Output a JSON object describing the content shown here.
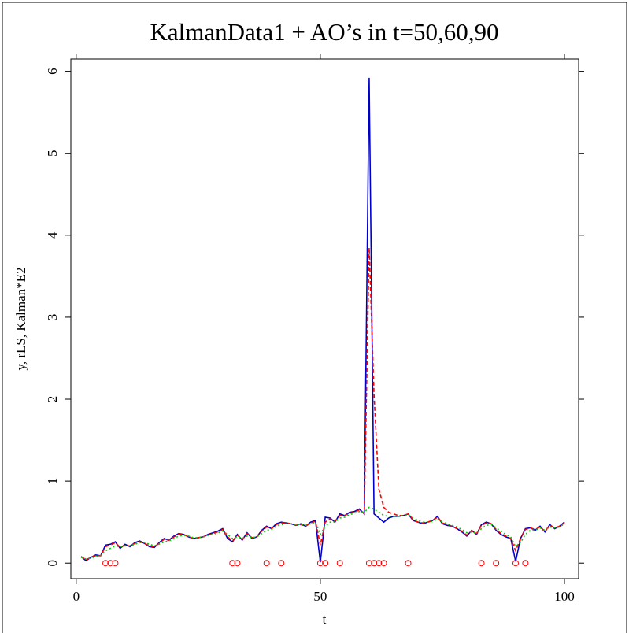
{
  "chart_data": {
    "type": "line",
    "title": "KalmanData1 + AO’s in t=50,60,90",
    "x_label": "t",
    "y_label": "y, rLS, Kalman*E2",
    "xlim": [
      -1.1,
      102.9
    ],
    "xticks": [
      0,
      50,
      100
    ],
    "ylim": [
      -0.19,
      6.15
    ],
    "yticks": [
      0,
      1,
      2,
      3,
      4,
      5,
      6
    ],
    "x": [
      1,
      2,
      3,
      4,
      5,
      6,
      7,
      8,
      9,
      10,
      11,
      12,
      13,
      14,
      15,
      16,
      17,
      18,
      19,
      20,
      21,
      22,
      23,
      24,
      25,
      26,
      27,
      28,
      29,
      30,
      31,
      32,
      33,
      34,
      35,
      36,
      37,
      38,
      39,
      40,
      41,
      42,
      43,
      44,
      45,
      46,
      47,
      48,
      49,
      50,
      51,
      52,
      53,
      54,
      55,
      56,
      57,
      58,
      59,
      60,
      61,
      62,
      63,
      64,
      65,
      66,
      67,
      68,
      69,
      70,
      71,
      72,
      73,
      74,
      75,
      76,
      77,
      78,
      79,
      80,
      81,
      82,
      83,
      84,
      85,
      86,
      87,
      88,
      89,
      90,
      91,
      92,
      93,
      94,
      95,
      96,
      97,
      98,
      99,
      100
    ],
    "series": [
      {
        "color": "#0000cc",
        "style": "solid",
        "values": [
          0.08,
          0.03,
          0.07,
          0.1,
          0.09,
          0.22,
          0.23,
          0.26,
          0.18,
          0.23,
          0.2,
          0.25,
          0.27,
          0.24,
          0.2,
          0.19,
          0.25,
          0.3,
          0.28,
          0.33,
          0.36,
          0.35,
          0.32,
          0.3,
          0.31,
          0.32,
          0.35,
          0.37,
          0.39,
          0.42,
          0.3,
          0.26,
          0.35,
          0.28,
          0.37,
          0.3,
          0.32,
          0.4,
          0.45,
          0.42,
          0.48,
          0.5,
          0.49,
          0.48,
          0.46,
          0.48,
          0.45,
          0.5,
          0.52,
          0.01,
          0.56,
          0.55,
          0.5,
          0.6,
          0.58,
          0.62,
          0.63,
          0.66,
          0.6,
          5.92,
          0.6,
          0.55,
          0.5,
          0.55,
          0.57,
          0.57,
          0.58,
          0.6,
          0.52,
          0.5,
          0.48,
          0.5,
          0.52,
          0.57,
          0.48,
          0.46,
          0.45,
          0.42,
          0.38,
          0.33,
          0.4,
          0.35,
          0.47,
          0.5,
          0.48,
          0.4,
          0.35,
          0.32,
          0.3,
          0.02,
          0.3,
          0.42,
          0.43,
          0.4,
          0.45,
          0.38,
          0.47,
          0.42,
          0.45,
          0.5
        ]
      },
      {
        "color": "#ff0000",
        "style": "dashed",
        "values": [
          0.08,
          0.04,
          0.07,
          0.09,
          0.09,
          0.2,
          0.22,
          0.25,
          0.19,
          0.22,
          0.21,
          0.24,
          0.26,
          0.24,
          0.21,
          0.2,
          0.24,
          0.29,
          0.28,
          0.32,
          0.35,
          0.35,
          0.32,
          0.3,
          0.31,
          0.32,
          0.34,
          0.36,
          0.38,
          0.41,
          0.32,
          0.27,
          0.34,
          0.29,
          0.36,
          0.31,
          0.32,
          0.39,
          0.44,
          0.42,
          0.47,
          0.49,
          0.49,
          0.48,
          0.46,
          0.47,
          0.45,
          0.49,
          0.51,
          0.22,
          0.5,
          0.54,
          0.51,
          0.58,
          0.58,
          0.61,
          0.62,
          0.65,
          0.61,
          3.85,
          2.05,
          0.9,
          0.68,
          0.62,
          0.6,
          0.58,
          0.58,
          0.6,
          0.53,
          0.5,
          0.49,
          0.5,
          0.52,
          0.56,
          0.49,
          0.47,
          0.45,
          0.42,
          0.39,
          0.34,
          0.39,
          0.36,
          0.46,
          0.49,
          0.48,
          0.41,
          0.36,
          0.33,
          0.3,
          0.15,
          0.3,
          0.41,
          0.43,
          0.41,
          0.44,
          0.39,
          0.46,
          0.43,
          0.45,
          0.49
        ]
      },
      {
        "color": "#00cc00",
        "style": "dotted",
        "values": [
          0.07,
          0.05,
          0.06,
          0.08,
          0.09,
          0.15,
          0.18,
          0.21,
          0.2,
          0.21,
          0.21,
          0.23,
          0.25,
          0.25,
          0.23,
          0.21,
          0.23,
          0.26,
          0.27,
          0.3,
          0.33,
          0.34,
          0.33,
          0.31,
          0.31,
          0.32,
          0.34,
          0.35,
          0.37,
          0.39,
          0.35,
          0.3,
          0.32,
          0.3,
          0.33,
          0.31,
          0.32,
          0.36,
          0.4,
          0.41,
          0.45,
          0.47,
          0.48,
          0.48,
          0.47,
          0.47,
          0.46,
          0.48,
          0.5,
          0.35,
          0.45,
          0.5,
          0.5,
          0.55,
          0.56,
          0.59,
          0.61,
          0.63,
          0.62,
          0.68,
          0.66,
          0.62,
          0.58,
          0.57,
          0.57,
          0.57,
          0.58,
          0.59,
          0.55,
          0.52,
          0.5,
          0.5,
          0.51,
          0.54,
          0.5,
          0.48,
          0.46,
          0.44,
          0.41,
          0.37,
          0.38,
          0.37,
          0.42,
          0.46,
          0.47,
          0.43,
          0.39,
          0.35,
          0.32,
          0.2,
          0.25,
          0.35,
          0.4,
          0.4,
          0.43,
          0.4,
          0.44,
          0.43,
          0.44,
          0.48
        ]
      }
    ],
    "outliers": {
      "color": "#ff0000",
      "x": [
        6,
        7,
        8,
        32,
        33,
        39,
        42,
        50,
        51,
        54,
        60,
        61,
        62,
        63,
        68,
        83,
        86,
        90,
        92
      ],
      "values": [
        0,
        0,
        0,
        0,
        0,
        0,
        0,
        0,
        0,
        0,
        0,
        0,
        0,
        0,
        0,
        0,
        0,
        0,
        0
      ]
    }
  }
}
